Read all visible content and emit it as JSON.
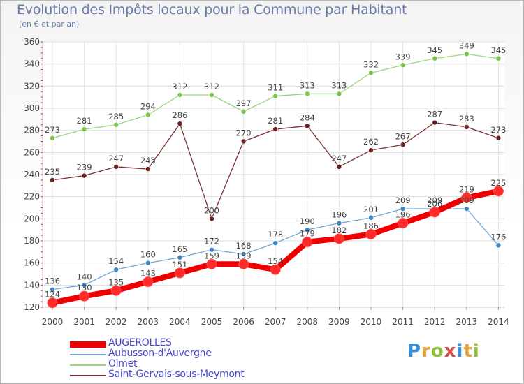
{
  "header": {
    "title": "Evolution des Impôts locaux pour la Commune par Habitant",
    "subtitle": "(en € et par an)"
  },
  "brand": {
    "letters": [
      "P",
      "r",
      "o",
      "x",
      "i",
      "t",
      "i"
    ],
    "colors": [
      "#3b8fd4",
      "#e8a23a",
      "#8dbf3c",
      "#d44a4a",
      "#3b8fd4",
      "#e8a23a",
      "#8dbf3c"
    ]
  },
  "chart_data": {
    "type": "line",
    "title": "Evolution des Impôts locaux pour la Commune par Habitant",
    "ylabel": "(en € et par an)",
    "xlabel": "",
    "x": [
      "2000",
      "2001",
      "2002",
      "2003",
      "2004",
      "2005",
      "2006",
      "2007",
      "2008",
      "2009",
      "2010",
      "2011",
      "2012",
      "2013",
      "2014"
    ],
    "ylim": [
      120,
      360
    ],
    "yticks": [
      120,
      140,
      160,
      180,
      200,
      220,
      240,
      260,
      280,
      300,
      320,
      340,
      360
    ],
    "grid": true,
    "legend_position": "bottom-left",
    "series": [
      {
        "name": "AUGEROLLES",
        "color": "#ee0000",
        "marker": "#ff2a2a",
        "thick": true,
        "values": [
          124,
          130,
          135,
          143,
          151,
          159,
          159,
          154,
          179,
          182,
          186,
          196,
          206,
          219,
          225
        ],
        "labels": [
          "124",
          "130",
          "135",
          "143",
          "151",
          "159",
          "159",
          "154",
          "179",
          "182",
          "186",
          "196",
          "206",
          "219",
          "225"
        ]
      },
      {
        "name": "Aubusson-d'Auvergne",
        "color": "#6ea6d6",
        "marker": "#3d86c9",
        "thick": false,
        "values": [
          136,
          140,
          154,
          160,
          165,
          172,
          168,
          178,
          190,
          196,
          201,
          209,
          209,
          209,
          176
        ],
        "labels": [
          "136",
          "140",
          "154",
          "160",
          "165",
          "172",
          "168",
          "178",
          "190",
          "196",
          "201",
          "209",
          "209",
          "209",
          "176"
        ]
      },
      {
        "name": "Olmet",
        "color": "#9ad77a",
        "marker": "#7dc44a",
        "thick": false,
        "values": [
          273,
          281,
          285,
          294,
          312,
          312,
          297,
          311,
          313,
          313,
          332,
          339,
          345,
          349,
          345
        ],
        "labels": [
          "273",
          "281",
          "285",
          "294",
          "312",
          "312",
          "297",
          "311",
          "313",
          "313",
          "332",
          "339",
          "345",
          "349",
          "345"
        ]
      },
      {
        "name": "Saint-Gervais-sous-Meymont",
        "color": "#7a3232",
        "marker": "#6b1e1e",
        "thick": false,
        "values": [
          235,
          239,
          247,
          245,
          286,
          200,
          270,
          281,
          284,
          247,
          262,
          267,
          287,
          283,
          273
        ],
        "labels": [
          "235",
          "239",
          "247",
          "245",
          "286",
          "200",
          "270",
          "281",
          "284",
          "247",
          "262",
          "267",
          "287",
          "283",
          "273"
        ]
      }
    ]
  }
}
